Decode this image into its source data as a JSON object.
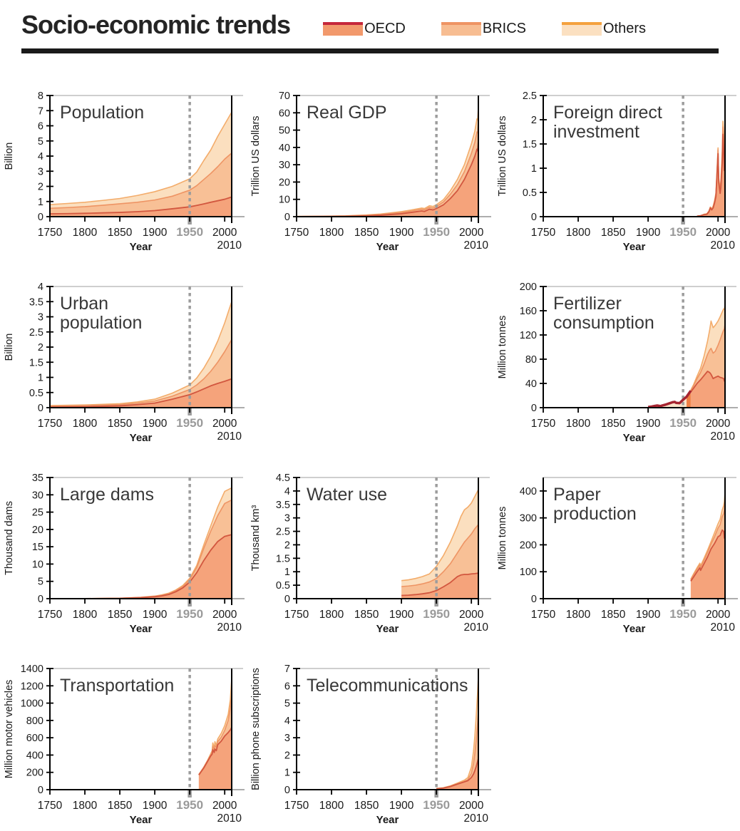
{
  "header": {
    "title": "Socio-economic trends"
  },
  "legend": {
    "items": [
      {
        "label": "OECD",
        "fill": "#F2996C",
        "border": "#C5273B"
      },
      {
        "label": "BRICS",
        "fill": "#F7BD92",
        "border": "#EE9464"
      },
      {
        "label": "Others",
        "fill": "#FBE0C1",
        "border": "#F4A13E"
      }
    ]
  },
  "colors": {
    "oecd_fill": "#F5A37B",
    "oecd_line": "#D2573F",
    "brics_fill": "#F8C096",
    "brics_line": "#EE9464",
    "others_fill": "#FBDFBF",
    "others_line": "#F3AC6B",
    "pre_line": "#A62430",
    "pre_fill": "#FBE4CA",
    "pre_block": "#EF7F43",
    "dash": "#9C9C9C",
    "frame_top": "#BDBDBD",
    "frame_ext": "#ADADAD",
    "axis": "#000000",
    "tick_text": "#1a1a1a",
    "label_1950": "#9A9A9A",
    "title_text": "#383838"
  },
  "chart_data": {
    "type": "area",
    "note": "Stacked area charts, cumulative series (oecd, oecd+brics=brics, grand total=total)",
    "x_axis": {
      "label": "Year",
      "xmin": 1750,
      "xmax": 2010,
      "xticks": [
        1750,
        1800,
        1850,
        1900,
        1950,
        2000
      ],
      "end_label": "2010",
      "marker_year": 1950
    },
    "series_names": [
      "OECD",
      "BRICS",
      "Others"
    ],
    "panels": [
      {
        "key": "population",
        "col": 1,
        "row": 1,
        "title_lines": [
          "Population"
        ],
        "ylabel": "Billion",
        "ymax": 8,
        "yticks": [
          0,
          1,
          2,
          3,
          4,
          5,
          6,
          7,
          8
        ],
        "x": [
          1750,
          1775,
          1800,
          1825,
          1850,
          1875,
          1900,
          1925,
          1950,
          1960,
          1970,
          1980,
          1990,
          2000,
          2010
        ],
        "oecd": [
          0.19,
          0.2,
          0.22,
          0.25,
          0.28,
          0.33,
          0.4,
          0.52,
          0.65,
          0.74,
          0.84,
          0.95,
          1.05,
          1.15,
          1.3
        ],
        "brics": [
          0.55,
          0.6,
          0.66,
          0.75,
          0.85,
          0.95,
          1.1,
          1.35,
          1.75,
          2.05,
          2.45,
          2.85,
          3.3,
          3.8,
          4.2
        ],
        "total": [
          0.8,
          0.87,
          0.95,
          1.07,
          1.2,
          1.4,
          1.65,
          2.0,
          2.5,
          2.95,
          3.7,
          4.4,
          5.3,
          6.1,
          6.9
        ]
      },
      {
        "key": "gdp",
        "col": 2,
        "row": 1,
        "title_lines": [
          "Real GDP"
        ],
        "ylabel": "Trillion US dollars",
        "ymax": 70,
        "yticks": [
          0,
          10,
          20,
          30,
          40,
          50,
          60,
          70
        ],
        "x": [
          1750,
          1800,
          1820,
          1850,
          1870,
          1900,
          1913,
          1929,
          1933,
          1940,
          1945,
          1950,
          1960,
          1970,
          1980,
          1990,
          2000,
          2005,
          2008,
          2009,
          2010
        ],
        "oecd": [
          0.05,
          0.12,
          0.18,
          0.45,
          0.8,
          1.7,
          2.4,
          3.3,
          3.0,
          4.3,
          3.9,
          4.7,
          6.8,
          10.5,
          15.0,
          21.5,
          30.0,
          35.0,
          39.0,
          38.0,
          44.0
        ],
        "brics": [
          0.12,
          0.28,
          0.38,
          0.8,
          1.25,
          2.4,
          3.2,
          4.3,
          4.0,
          5.4,
          5.0,
          5.9,
          8.5,
          13.0,
          18.5,
          26.0,
          36.5,
          43.0,
          49.0,
          48.5,
          55.0
        ],
        "total": [
          0.15,
          0.35,
          0.48,
          1.0,
          1.55,
          2.9,
          3.8,
          5.0,
          4.7,
          6.3,
          5.9,
          6.9,
          9.8,
          15.0,
          21.5,
          30.0,
          42.0,
          49.5,
          56.5,
          56.0,
          63.0
        ]
      },
      {
        "key": "fdi",
        "col": 3,
        "row": 1,
        "title_lines": [
          "Foreign direct",
          "investment"
        ],
        "ylabel": "Trillion US dollars",
        "ymax": 2.5,
        "yticks": [
          0,
          0.5,
          1,
          1.5,
          2,
          2.5
        ],
        "x": [
          1970,
          1975,
          1980,
          1984,
          1987,
          1989,
          1991,
          1993,
          1995,
          1997,
          1999,
          2000,
          2001,
          2003,
          2004,
          2006,
          2007,
          2008,
          2009,
          2010
        ],
        "oecd": [
          0.01,
          0.02,
          0.04,
          0.05,
          0.1,
          0.18,
          0.14,
          0.18,
          0.28,
          0.42,
          1.0,
          1.3,
          0.7,
          0.48,
          0.6,
          1.1,
          1.7,
          1.35,
          0.95,
          1.2
        ],
        "brics": [
          0.01,
          0.02,
          0.04,
          0.05,
          0.11,
          0.19,
          0.15,
          0.2,
          0.31,
          0.46,
          1.06,
          1.38,
          0.76,
          0.53,
          0.68,
          1.25,
          1.85,
          1.55,
          1.05,
          1.32
        ],
        "total": [
          0.01,
          0.02,
          0.05,
          0.06,
          0.12,
          0.2,
          0.16,
          0.22,
          0.33,
          0.49,
          1.1,
          1.42,
          0.8,
          0.57,
          0.73,
          1.35,
          1.97,
          1.75,
          1.15,
          1.4
        ]
      },
      {
        "key": "urban",
        "col": 1,
        "row": 2,
        "title_lines": [
          "Urban",
          "population"
        ],
        "ylabel": "Billion",
        "ymax": 4,
        "yticks": [
          0,
          0.5,
          1,
          1.5,
          2,
          2.5,
          3,
          3.5,
          4
        ],
        "x": [
          1750,
          1800,
          1850,
          1875,
          1900,
          1925,
          1950,
          1960,
          1970,
          1980,
          1990,
          2000,
          2010
        ],
        "oecd": [
          0.02,
          0.03,
          0.06,
          0.1,
          0.15,
          0.28,
          0.43,
          0.52,
          0.62,
          0.72,
          0.8,
          0.87,
          0.95
        ],
        "brics": [
          0.05,
          0.07,
          0.1,
          0.15,
          0.22,
          0.38,
          0.6,
          0.75,
          0.95,
          1.2,
          1.5,
          1.85,
          2.25
        ],
        "total": [
          0.07,
          0.09,
          0.13,
          0.19,
          0.28,
          0.48,
          0.75,
          0.98,
          1.3,
          1.7,
          2.2,
          2.8,
          3.5
        ]
      },
      {
        "key": "fertilizer",
        "col": 3,
        "row": 2,
        "title_lines": [
          "Fertilizer",
          "consumption"
        ],
        "ylabel": "Million tonnes",
        "ymax": 200,
        "yticks": [
          0,
          40,
          80,
          120,
          160,
          200
        ],
        "preline": {
          "x": [
            1900,
            1905,
            1910,
            1913,
            1918,
            1920,
            1925,
            1930,
            1935,
            1938,
            1940,
            1945,
            1950,
            1955,
            1958,
            1961
          ],
          "y": [
            1.0,
            1.8,
            3.0,
            3.5,
            2.5,
            3.5,
            5.0,
            7.0,
            9.0,
            9.5,
            8.0,
            7.5,
            13.0,
            18.0,
            23.0,
            28.0
          ]
        },
        "x": [
          1961,
          1965,
          1970,
          1975,
          1980,
          1985,
          1988,
          1990,
          1993,
          1996,
          2000,
          2003,
          2006,
          2008,
          2009,
          2010
        ],
        "oecd": [
          26,
          32,
          40,
          46,
          53,
          60,
          58,
          55,
          48,
          50,
          52,
          50,
          49,
          48,
          44,
          43
        ],
        "brics": [
          28,
          36,
          48,
          58,
          72,
          88,
          95,
          98,
          90,
          93,
          103,
          112,
          122,
          128,
          130,
          138
        ],
        "total": [
          29,
          38,
          52,
          65,
          85,
          110,
          128,
          143,
          132,
          136,
          143,
          150,
          158,
          163,
          162,
          170
        ]
      },
      {
        "key": "dams",
        "col": 1,
        "row": 3,
        "title_lines": [
          "Large dams"
        ],
        "ylabel": "Thousand dams",
        "ymax": 35,
        "yticks": [
          0,
          5,
          10,
          15,
          20,
          25,
          30,
          35
        ],
        "x": [
          1750,
          1800,
          1850,
          1880,
          1900,
          1910,
          1920,
          1930,
          1940,
          1950,
          1960,
          1970,
          1980,
          1990,
          2000,
          2010
        ],
        "oecd": [
          0.0,
          0.02,
          0.1,
          0.3,
          0.55,
          0.8,
          1.2,
          2.0,
          3.1,
          4.8,
          7.5,
          11.0,
          14.0,
          16.5,
          18.0,
          18.5
        ],
        "brics": [
          0.0,
          0.02,
          0.12,
          0.35,
          0.65,
          0.95,
          1.4,
          2.3,
          3.5,
          5.5,
          9.0,
          14.5,
          19.5,
          24.0,
          27.5,
          28.5
        ],
        "total": [
          0.0,
          0.03,
          0.15,
          0.4,
          0.75,
          1.1,
          1.6,
          2.5,
          3.8,
          5.9,
          9.6,
          15.5,
          21.0,
          26.5,
          31.0,
          32.0
        ]
      },
      {
        "key": "water",
        "col": 2,
        "row": 3,
        "title_lines": [
          "Water use"
        ],
        "ylabel": "Thousand km³",
        "ymax": 4.5,
        "yticks": [
          0,
          0.5,
          1,
          1.5,
          2,
          2.5,
          3,
          3.5,
          4,
          4.5
        ],
        "x": [
          1900,
          1910,
          1920,
          1930,
          1940,
          1950,
          1960,
          1970,
          1980,
          1985,
          1990,
          1995,
          2000,
          2005,
          2010
        ],
        "oecd": [
          0.12,
          0.13,
          0.15,
          0.18,
          0.22,
          0.3,
          0.44,
          0.6,
          0.82,
          0.88,
          0.9,
          0.9,
          0.92,
          0.93,
          0.95
        ],
        "brics": [
          0.45,
          0.47,
          0.5,
          0.55,
          0.62,
          0.75,
          1.0,
          1.3,
          1.7,
          1.9,
          2.1,
          2.25,
          2.4,
          2.6,
          2.75
        ],
        "total": [
          0.67,
          0.7,
          0.75,
          0.82,
          0.92,
          1.2,
          1.6,
          2.1,
          2.7,
          3.05,
          3.3,
          3.4,
          3.55,
          3.8,
          4.05
        ]
      },
      {
        "key": "paper",
        "col": 3,
        "row": 3,
        "title_lines": [
          "Paper",
          "production"
        ],
        "ylabel": "Million tonnes",
        "ymax": 450,
        "yticks": [
          0,
          100,
          200,
          300,
          400
        ],
        "x": [
          1961,
          1965,
          1970,
          1974,
          1975,
          1980,
          1985,
          1990,
          1995,
          2000,
          2003,
          2006,
          2008,
          2009,
          2010
        ],
        "oecd": [
          65,
          80,
          100,
          115,
          105,
          130,
          155,
          185,
          205,
          230,
          235,
          255,
          250,
          225,
          240
        ],
        "brics": [
          70,
          88,
          110,
          126,
          116,
          143,
          172,
          203,
          230,
          262,
          275,
          305,
          315,
          330,
          365
        ],
        "total": [
          72,
          92,
          115,
          132,
          122,
          150,
          180,
          212,
          245,
          278,
          295,
          330,
          345,
          360,
          395
        ]
      },
      {
        "key": "transport",
        "col": 1,
        "row": 4,
        "title_lines": [
          "Transportation"
        ],
        "ylabel": "Million motor vehicles",
        "ymax": 1400,
        "yticks": [
          0,
          200,
          400,
          600,
          800,
          1000,
          1200,
          1400
        ],
        "x": [
          1963,
          1970,
          1975,
          1980,
          1982,
          1983,
          1985,
          1986,
          1988,
          1990,
          1995,
          2000,
          2005,
          2008,
          2010
        ],
        "oecd": [
          170,
          250,
          320,
          390,
          410,
          460,
          430,
          470,
          450,
          520,
          560,
          620,
          660,
          690,
          720
        ],
        "brics": [
          172,
          255,
          325,
          400,
          430,
          500,
          460,
          510,
          490,
          555,
          605,
          685,
          800,
          940,
          1100
        ],
        "total": [
          175,
          260,
          332,
          415,
          450,
          540,
          480,
          555,
          510,
          585,
          650,
          740,
          870,
          1040,
          1280
        ]
      },
      {
        "key": "telecom",
        "col": 2,
        "row": 4,
        "title_lines": [
          "Telecommunications"
        ],
        "ylabel": "Billion phone subscriptions",
        "ymax": 7,
        "yticks": [
          0,
          1,
          2,
          3,
          4,
          5,
          6,
          7
        ],
        "x": [
          1950,
          1960,
          1970,
          1980,
          1990,
          1995,
          2000,
          2003,
          2005,
          2007,
          2008,
          2009,
          2010
        ],
        "oecd": [
          0.05,
          0.09,
          0.18,
          0.32,
          0.45,
          0.52,
          0.7,
          0.9,
          1.1,
          1.35,
          1.5,
          1.65,
          1.8
        ],
        "brics": [
          0.05,
          0.095,
          0.19,
          0.34,
          0.48,
          0.58,
          0.95,
          1.5,
          2.1,
          2.9,
          3.4,
          3.9,
          4.5
        ],
        "total": [
          0.07,
          0.11,
          0.22,
          0.38,
          0.55,
          0.7,
          1.3,
          2.2,
          3.1,
          4.3,
          5.0,
          5.7,
          6.5
        ]
      }
    ]
  }
}
